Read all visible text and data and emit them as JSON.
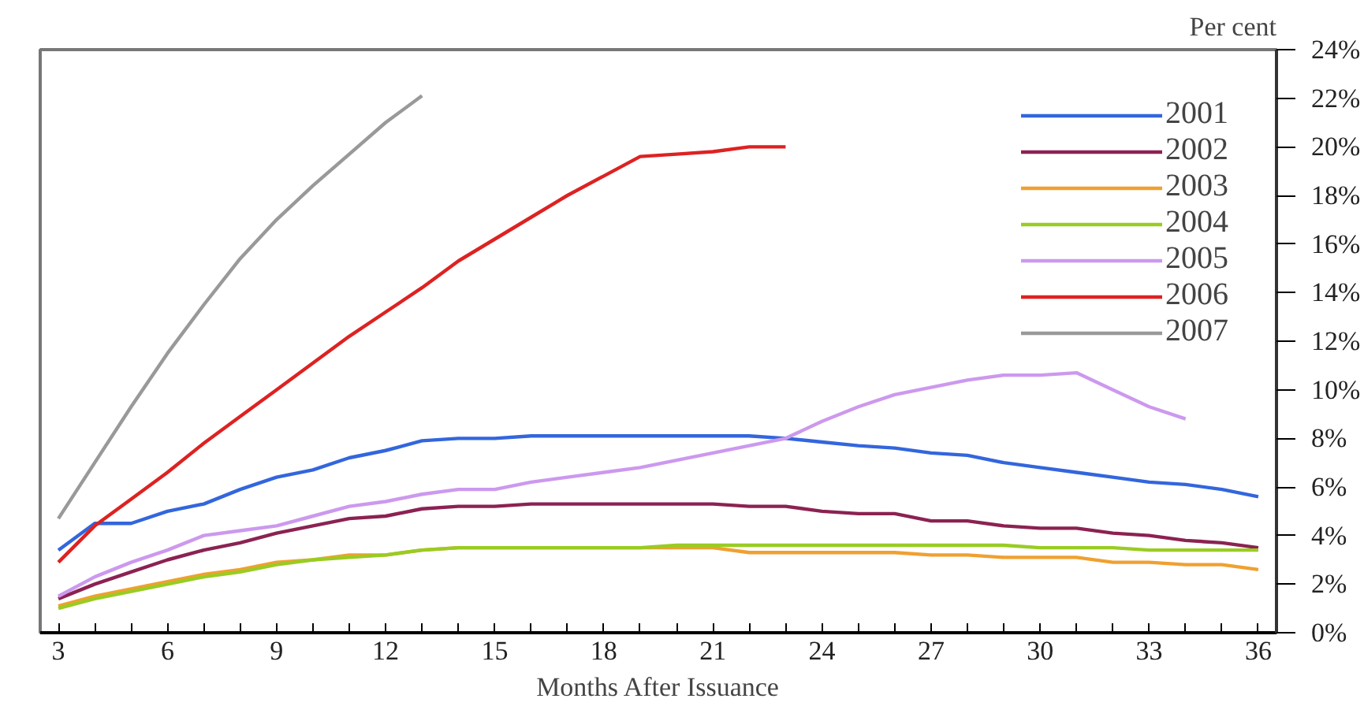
{
  "chart_data": {
    "type": "line",
    "xlabel": "Months After Issuance",
    "ylabel": "Per cent",
    "x": [
      3,
      4,
      5,
      6,
      7,
      8,
      9,
      10,
      11,
      12,
      13,
      14,
      15,
      16,
      17,
      18,
      19,
      20,
      21,
      22,
      23,
      24,
      25,
      26,
      27,
      28,
      29,
      30,
      31,
      32,
      33,
      34,
      35,
      36
    ],
    "series": [
      {
        "name": "2001",
        "color": "#3366dd",
        "values": [
          3.4,
          4.5,
          4.5,
          5.0,
          5.3,
          5.9,
          6.4,
          6.7,
          7.2,
          7.5,
          7.9,
          8.0,
          8.0,
          8.1,
          8.1,
          8.1,
          8.1,
          8.1,
          8.1,
          8.1,
          8.0,
          7.85,
          7.7,
          7.6,
          7.4,
          7.3,
          7.0,
          6.8,
          6.6,
          6.4,
          6.2,
          6.1,
          5.9,
          5.6
        ]
      },
      {
        "name": "2002",
        "color": "#8b2252",
        "values": [
          1.4,
          2.0,
          2.5,
          3.0,
          3.4,
          3.7,
          4.1,
          4.4,
          4.7,
          4.8,
          5.1,
          5.2,
          5.2,
          5.3,
          5.3,
          5.3,
          5.3,
          5.3,
          5.3,
          5.2,
          5.2,
          5.0,
          4.9,
          4.9,
          4.6,
          4.6,
          4.4,
          4.3,
          4.3,
          4.1,
          4.0,
          3.8,
          3.7,
          3.5
        ]
      },
      {
        "name": "2003",
        "color": "#f0a030",
        "values": [
          1.1,
          1.5,
          1.8,
          2.1,
          2.4,
          2.6,
          2.9,
          3.0,
          3.2,
          3.2,
          3.4,
          3.5,
          3.5,
          3.5,
          3.5,
          3.5,
          3.5,
          3.5,
          3.5,
          3.3,
          3.3,
          3.3,
          3.3,
          3.3,
          3.2,
          3.2,
          3.1,
          3.1,
          3.1,
          2.9,
          2.9,
          2.8,
          2.8,
          2.6
        ]
      },
      {
        "name": "2004",
        "color": "#99cc22",
        "values": [
          1.0,
          1.4,
          1.7,
          2.0,
          2.3,
          2.5,
          2.8,
          3.0,
          3.1,
          3.2,
          3.4,
          3.5,
          3.5,
          3.5,
          3.5,
          3.5,
          3.5,
          3.6,
          3.6,
          3.6,
          3.6,
          3.6,
          3.6,
          3.6,
          3.6,
          3.6,
          3.6,
          3.5,
          3.5,
          3.5,
          3.4,
          3.4,
          3.4,
          3.4
        ]
      },
      {
        "name": "2005",
        "color": "#cc99ee",
        "values": [
          1.5,
          2.3,
          2.9,
          3.4,
          4.0,
          4.2,
          4.4,
          4.8,
          5.2,
          5.4,
          5.7,
          5.9,
          5.9,
          6.2,
          6.4,
          6.6,
          6.8,
          7.1,
          7.4,
          7.7,
          8.0,
          8.7,
          9.3,
          9.8,
          10.1,
          10.4,
          10.6,
          10.6,
          10.7,
          10.0,
          9.3,
          8.8,
          null,
          null
        ]
      },
      {
        "name": "2006",
        "color": "#dd2222",
        "values": [
          2.9,
          4.4,
          5.5,
          6.6,
          7.8,
          8.9,
          10.0,
          11.1,
          12.2,
          13.2,
          14.2,
          15.3,
          16.2,
          17.1,
          18.0,
          18.8,
          19.6,
          19.7,
          19.8,
          20.0,
          20.0,
          null,
          null,
          null,
          null,
          null,
          null,
          null,
          null,
          null,
          null,
          null,
          null,
          null
        ]
      },
      {
        "name": "2007",
        "color": "#999999",
        "values": [
          4.7,
          7.0,
          9.3,
          11.5,
          13.5,
          15.4,
          17.0,
          18.4,
          19.7,
          21.0,
          22.1,
          null,
          null,
          null,
          null,
          null,
          null,
          null,
          null,
          null,
          null,
          null,
          null,
          null,
          null,
          null,
          null,
          null,
          null,
          null,
          null,
          null,
          null,
          null
        ]
      }
    ],
    "xlim": [
      2.5,
      36.5
    ],
    "xticks": [
      3,
      6,
      9,
      12,
      15,
      18,
      21,
      24,
      27,
      30,
      33,
      36
    ],
    "ylim": [
      0,
      24
    ],
    "yticks": [
      {
        "value": 0,
        "label": "0%"
      },
      {
        "value": 2,
        "label": "2%"
      },
      {
        "value": 4,
        "label": "4%"
      },
      {
        "value": 6,
        "label": "6%"
      },
      {
        "value": 8,
        "label": "8%"
      },
      {
        "value": 10,
        "label": "10%"
      },
      {
        "value": 12,
        "label": "12%"
      },
      {
        "value": 14,
        "label": "14%"
      },
      {
        "value": 16,
        "label": "16%"
      },
      {
        "value": 18,
        "label": "18%"
      },
      {
        "value": 20,
        "label": "20%"
      },
      {
        "value": 22,
        "label": "22%"
      },
      {
        "value": 24,
        "label": "24%"
      }
    ],
    "legend": "top right",
    "grid": false,
    "line_style": "solid"
  }
}
